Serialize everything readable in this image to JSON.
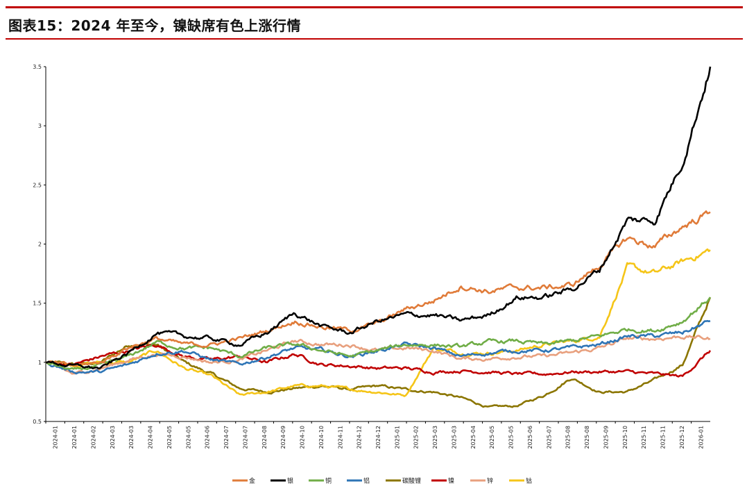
{
  "title": "图表15：2024 年至今，镍缺席有色上涨行情",
  "colors": {
    "accent_rule": "#c00000"
  },
  "chart_data": {
    "type": "line",
    "title": "图表15：2024 年至今，镍缺席有色上涨行情",
    "xlabel": "",
    "ylabel": "",
    "ylim": [
      0.5,
      3.5
    ],
    "yticks": [
      0.5,
      1,
      1.5,
      2,
      2.5,
      3,
      3.5
    ],
    "ytick_labels": [
      "0.5",
      "1",
      "1.5",
      "2",
      "2.5",
      "3",
      "3.5"
    ],
    "xticks": [
      "2024-01",
      "2024-01",
      "2024-02",
      "2024-03",
      "2024-03",
      "2024-04",
      "2024-05",
      "2024-05",
      "2024-06",
      "2024-07",
      "2024-07",
      "2024-08",
      "2024-09",
      "2024-10",
      "2024-10",
      "2024-11",
      "2024-12",
      "2024-12",
      "2025-01",
      "2025-02",
      "2025-03",
      "2025-03",
      "2025-04",
      "2025-05",
      "2025-05",
      "2025-06",
      "2025-07",
      "2025-08",
      "2025-08",
      "2025-09",
      "2025-10",
      "2025-11",
      "2025-11",
      "2025-12",
      "2026-01"
    ],
    "x": [
      "2024-01",
      "2024-02",
      "2024-03",
      "2024-04",
      "2024-05",
      "2024-06",
      "2024-07",
      "2024-08",
      "2024-09",
      "2024-10",
      "2024-11",
      "2024-12",
      "2025-01",
      "2025-02",
      "2025-03",
      "2025-04",
      "2025-05",
      "2025-06",
      "2025-07",
      "2025-08",
      "2025-09",
      "2025-10",
      "2025-11",
      "2025-12",
      "2026-01"
    ],
    "legend_position": "bottom",
    "series": [
      {
        "name": "金",
        "color": "#e07b39",
        "values": [
          1.0,
          0.97,
          1.0,
          1.13,
          1.2,
          1.15,
          1.15,
          1.2,
          1.27,
          1.35,
          1.3,
          1.27,
          1.33,
          1.45,
          1.52,
          1.65,
          1.6,
          1.63,
          1.63,
          1.65,
          1.82,
          2.05,
          1.98,
          2.15,
          2.27
        ]
      },
      {
        "name": "银",
        "color": "#000000",
        "values": [
          1.0,
          0.97,
          0.95,
          1.08,
          1.25,
          1.22,
          1.2,
          1.15,
          1.25,
          1.42,
          1.3,
          1.25,
          1.35,
          1.4,
          1.4,
          1.35,
          1.4,
          1.55,
          1.55,
          1.62,
          1.78,
          2.2,
          2.2,
          2.7,
          3.5
        ]
      },
      {
        "name": "铜",
        "color": "#70ad47",
        "values": [
          1.0,
          0.93,
          0.97,
          1.05,
          1.17,
          1.12,
          1.12,
          1.05,
          1.12,
          1.15,
          1.1,
          1.05,
          1.1,
          1.15,
          1.15,
          1.13,
          1.17,
          1.18,
          1.15,
          1.18,
          1.22,
          1.28,
          1.27,
          1.35,
          1.55
        ]
      },
      {
        "name": "铝",
        "color": "#2e75b6",
        "values": [
          1.0,
          0.92,
          0.92,
          0.98,
          1.08,
          1.1,
          1.02,
          0.98,
          1.05,
          1.12,
          1.1,
          1.05,
          1.1,
          1.15,
          1.12,
          1.05,
          1.08,
          1.1,
          1.1,
          1.12,
          1.15,
          1.22,
          1.22,
          1.25,
          1.35
        ]
      },
      {
        "name": "碳酸锂",
        "color": "#8b7500",
        "values": [
          1.0,
          0.98,
          1.0,
          1.15,
          1.15,
          1.0,
          0.9,
          0.78,
          0.75,
          0.78,
          0.8,
          0.77,
          0.8,
          0.77,
          0.75,
          0.7,
          0.62,
          0.63,
          0.72,
          0.87,
          0.75,
          0.75,
          0.85,
          0.98,
          1.55
        ]
      },
      {
        "name": "镍",
        "color": "#c00000",
        "values": [
          1.0,
          0.98,
          1.05,
          1.1,
          1.15,
          1.05,
          1.02,
          1.05,
          1.0,
          1.07,
          0.98,
          0.97,
          0.95,
          0.95,
          0.92,
          0.93,
          0.92,
          0.9,
          0.9,
          0.92,
          0.92,
          0.92,
          0.9,
          0.88,
          1.1
        ]
      },
      {
        "name": "锌",
        "color": "#e8a07e",
        "values": [
          1.0,
          0.9,
          0.95,
          1.02,
          1.07,
          1.05,
          1.0,
          1.02,
          1.1,
          1.18,
          1.15,
          1.15,
          1.1,
          1.12,
          1.1,
          1.03,
          1.03,
          1.05,
          1.05,
          1.08,
          1.12,
          1.2,
          1.2,
          1.22,
          1.2
        ]
      },
      {
        "name": "钴",
        "color": "#f5c518",
        "values": [
          1.0,
          0.98,
          1.0,
          1.0,
          1.1,
          0.95,
          0.88,
          0.72,
          0.75,
          0.8,
          0.8,
          0.77,
          0.75,
          0.72,
          1.12,
          1.08,
          1.08,
          1.1,
          1.15,
          1.18,
          1.22,
          1.8,
          1.75,
          1.85,
          1.95
        ]
      }
    ]
  }
}
